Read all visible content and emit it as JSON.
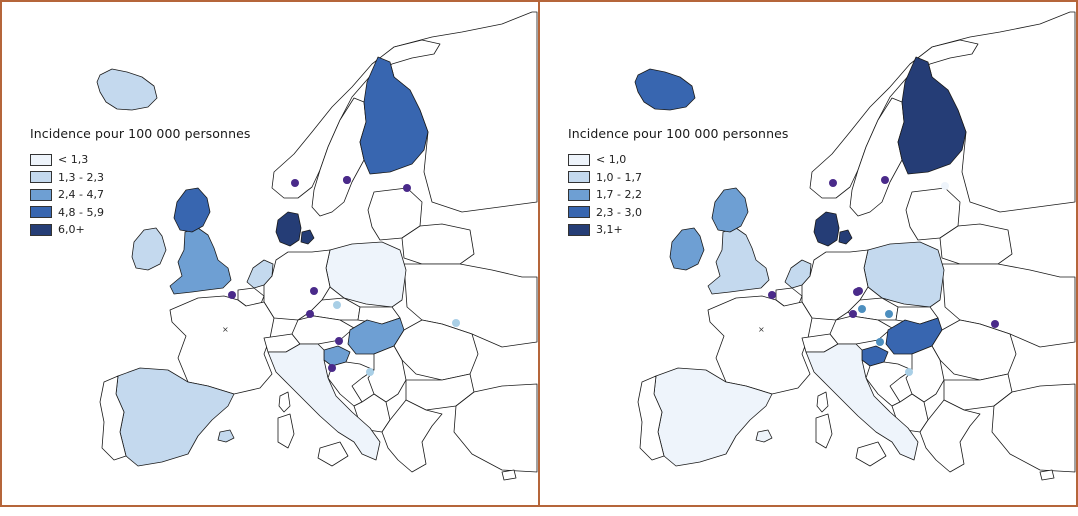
{
  "colors": {
    "c0": "#eef4fb",
    "c1": "#c4d9ee",
    "c2": "#6e9fd3",
    "c3": "#3866b0",
    "c4": "#253d76",
    "border": "#b5653a",
    "dot_purple": "#4a2a8a",
    "dot_light": "#a9cfe6",
    "dot_teal": "#4d8fbf"
  },
  "maps": [
    {
      "legend_title": "Incidence pour 100 000 personnes",
      "legend": [
        {
          "label": "< 1,3",
          "color": "#eef4fb"
        },
        {
          "label": "1,3 - 2,3",
          "color": "#c4d9ee"
        },
        {
          "label": "2,4 - 4,7",
          "color": "#6e9fd3"
        },
        {
          "label": "4,8 - 5,9",
          "color": "#3866b0"
        },
        {
          "label": "6,0+",
          "color": "#253d76"
        }
      ],
      "fills": {
        "iceland": "#c4d9ee",
        "ireland": "#c4d9ee",
        "gb": "#6e9fd3",
        "scotland": "#3866b0",
        "finland": "#3866b0",
        "denmark": "#253d76",
        "netherlands": "#c4d9ee",
        "poland": "#eef4fb",
        "hungary": "#6e9fd3",
        "slovenia": "#6e9fd3",
        "spain": "#c4d9ee",
        "italy": "#eef4fb",
        "mallorca": "#c4d9ee"
      },
      "dots": [
        {
          "color": "#4a2a8a"
        },
        {
          "color": "#4a2a8a"
        },
        {
          "color": "#4a2a8a"
        },
        {
          "color": "#4a2a8a"
        },
        {
          "color": "#4a2a8a"
        },
        {
          "color": "#4a2a8a"
        },
        {
          "color": "#4a2a8a"
        },
        {
          "color": "#4a2a8a"
        },
        {
          "color": "#4a2a8a"
        },
        {
          "color": "#a9cfe6"
        },
        {
          "color": "#a9cfe6"
        },
        {
          "color": "#a9cfe6"
        }
      ]
    },
    {
      "legend_title": "Incidence pour 100 000 personnes",
      "legend": [
        {
          "label": "< 1,0",
          "color": "#eef4fb"
        },
        {
          "label": "1,0 - 1,7",
          "color": "#c4d9ee"
        },
        {
          "label": "1,7 - 2,2",
          "color": "#6e9fd3"
        },
        {
          "label": "2,3 - 3,0",
          "color": "#3866b0"
        },
        {
          "label": "3,1+",
          "color": "#253d76"
        }
      ],
      "fills": {
        "iceland": "#3866b0",
        "ireland": "#6e9fd3",
        "gb": "#c4d9ee",
        "scotland": "#6e9fd3",
        "finland": "#253d76",
        "denmark": "#253d76",
        "netherlands": "#c4d9ee",
        "poland": "#c4d9ee",
        "hungary": "#3866b0",
        "slovenia": "#3866b0",
        "spain": "#eef4fb",
        "italy": "#eef4fb",
        "mallorca": "#eef4fb"
      },
      "dots": [
        {
          "color": "#4a2a8a"
        },
        {
          "color": "#4a2a8a"
        },
        {
          "color": "#4a2a8a"
        },
        {
          "color": "#4a2a8a"
        },
        {
          "color": "#4a2a8a"
        },
        {
          "color": "#4a2a8a"
        },
        {
          "color": "#4a2a8a"
        },
        {
          "color": "#4d8fbf"
        },
        {
          "color": "#4d8fbf"
        },
        {
          "color": "#4d8fbf"
        },
        {
          "color": "#eef4fb"
        },
        {
          "color": "#a9cfe6"
        }
      ]
    }
  ]
}
